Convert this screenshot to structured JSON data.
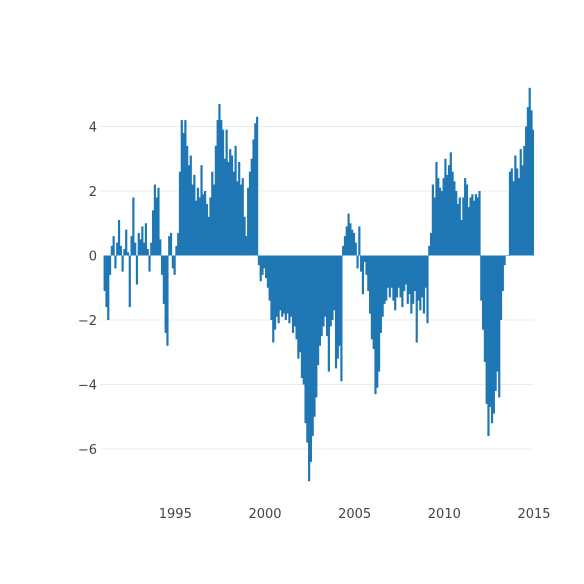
{
  "chart_data": {
    "type": "bar",
    "title": "",
    "xlabel": "",
    "ylabel": "",
    "xlim": [
      1990.8,
      2015.0
    ],
    "ylim": [
      -7.3,
      5.4
    ],
    "x_ticks": [
      {
        "value": 1995,
        "label": "1995"
      },
      {
        "value": 2000,
        "label": "2000"
      },
      {
        "value": 2005,
        "label": "2005"
      },
      {
        "value": 2010,
        "label": "2010"
      },
      {
        "value": 2015,
        "label": "2015"
      }
    ],
    "y_ticks": [
      {
        "value": 4,
        "label": "4"
      },
      {
        "value": 2,
        "label": "2"
      },
      {
        "value": 0,
        "label": "0"
      },
      {
        "value": -2,
        "label": "−2"
      },
      {
        "value": -4,
        "label": "−4"
      },
      {
        "value": -6,
        "label": "−6"
      }
    ],
    "grid": true,
    "series": [
      {
        "color": "#1f77b4",
        "points": [
          [
            1991.0,
            -1.1
          ],
          [
            1991.1,
            -1.6
          ],
          [
            1991.2,
            -2.0
          ],
          [
            1991.3,
            -0.6
          ],
          [
            1991.4,
            0.3
          ],
          [
            1991.5,
            0.6
          ],
          [
            1991.6,
            -0.4
          ],
          [
            1991.7,
            0.4
          ],
          [
            1991.8,
            1.1
          ],
          [
            1991.9,
            0.3
          ],
          [
            1992.0,
            -0.5
          ],
          [
            1992.1,
            0.2
          ],
          [
            1992.2,
            0.8
          ],
          [
            1992.3,
            0.1
          ],
          [
            1992.4,
            -1.6
          ],
          [
            1992.5,
            0.6
          ],
          [
            1992.6,
            1.8
          ],
          [
            1992.7,
            0.4
          ],
          [
            1992.8,
            -0.9
          ],
          [
            1992.9,
            0.7
          ],
          [
            1993.0,
            0.5
          ],
          [
            1993.1,
            0.9
          ],
          [
            1993.2,
            0.4
          ],
          [
            1993.3,
            1.0
          ],
          [
            1993.4,
            0.2
          ],
          [
            1993.5,
            -0.5
          ],
          [
            1993.6,
            0.4
          ],
          [
            1993.7,
            1.4
          ],
          [
            1993.8,
            2.2
          ],
          [
            1993.9,
            1.8
          ],
          [
            1994.0,
            2.1
          ],
          [
            1994.1,
            0.5
          ],
          [
            1994.2,
            -0.6
          ],
          [
            1994.3,
            -1.5
          ],
          [
            1994.4,
            -2.4
          ],
          [
            1994.5,
            -2.8
          ],
          [
            1994.6,
            0.6
          ],
          [
            1994.7,
            0.7
          ],
          [
            1994.8,
            -0.4
          ],
          [
            1994.9,
            -0.6
          ],
          [
            1995.0,
            0.3
          ],
          [
            1995.1,
            0.7
          ],
          [
            1995.2,
            2.6
          ],
          [
            1995.3,
            4.2
          ],
          [
            1995.4,
            3.8
          ],
          [
            1995.5,
            4.2
          ],
          [
            1995.6,
            3.4
          ],
          [
            1995.7,
            2.8
          ],
          [
            1995.8,
            3.1
          ],
          [
            1995.9,
            2.2
          ],
          [
            1996.0,
            2.5
          ],
          [
            1996.1,
            1.7
          ],
          [
            1996.2,
            2.1
          ],
          [
            1996.3,
            1.8
          ],
          [
            1996.4,
            2.8
          ],
          [
            1996.5,
            1.9
          ],
          [
            1996.6,
            2.0
          ],
          [
            1996.7,
            1.6
          ],
          [
            1996.8,
            1.2
          ],
          [
            1996.9,
            1.8
          ],
          [
            1997.0,
            2.6
          ],
          [
            1997.1,
            2.2
          ],
          [
            1997.2,
            3.4
          ],
          [
            1997.3,
            4.2
          ],
          [
            1997.4,
            4.7
          ],
          [
            1997.5,
            4.2
          ],
          [
            1997.6,
            3.9
          ],
          [
            1997.7,
            3.0
          ],
          [
            1997.8,
            3.9
          ],
          [
            1997.9,
            2.9
          ],
          [
            1998.0,
            3.3
          ],
          [
            1998.1,
            3.1
          ],
          [
            1998.2,
            2.6
          ],
          [
            1998.3,
            3.4
          ],
          [
            1998.4,
            2.3
          ],
          [
            1998.5,
            2.9
          ],
          [
            1998.6,
            2.2
          ],
          [
            1998.7,
            2.4
          ],
          [
            1998.8,
            1.2
          ],
          [
            1998.9,
            0.6
          ],
          [
            1999.0,
            2.1
          ],
          [
            1999.1,
            2.6
          ],
          [
            1999.2,
            3.0
          ],
          [
            1999.3,
            3.6
          ],
          [
            1999.4,
            4.1
          ],
          [
            1999.5,
            4.3
          ],
          [
            1999.6,
            -0.3
          ],
          [
            1999.7,
            -0.8
          ],
          [
            1999.8,
            -0.6
          ],
          [
            1999.9,
            -0.4
          ],
          [
            2000.0,
            -0.7
          ],
          [
            2000.1,
            -1.0
          ],
          [
            2000.2,
            -1.4
          ],
          [
            2000.3,
            -2.0
          ],
          [
            2000.4,
            -2.7
          ],
          [
            2000.5,
            -2.3
          ],
          [
            2000.6,
            -1.9
          ],
          [
            2000.7,
            -2.1
          ],
          [
            2000.8,
            -1.7
          ],
          [
            2000.9,
            -1.9
          ],
          [
            2001.0,
            -1.8
          ],
          [
            2001.1,
            -2.0
          ],
          [
            2001.2,
            -1.8
          ],
          [
            2001.3,
            -2.1
          ],
          [
            2001.4,
            -1.9
          ],
          [
            2001.5,
            -2.4
          ],
          [
            2001.6,
            -2.2
          ],
          [
            2001.7,
            -2.6
          ],
          [
            2001.8,
            -3.2
          ],
          [
            2001.9,
            -3.0
          ],
          [
            2002.0,
            -3.8
          ],
          [
            2002.1,
            -4.0
          ],
          [
            2002.2,
            -5.2
          ],
          [
            2002.3,
            -5.8
          ],
          [
            2002.4,
            -7.0
          ],
          [
            2002.5,
            -6.4
          ],
          [
            2002.6,
            -5.6
          ],
          [
            2002.7,
            -5.0
          ],
          [
            2002.8,
            -4.4
          ],
          [
            2002.9,
            -3.4
          ],
          [
            2003.0,
            -2.8
          ],
          [
            2003.1,
            -2.5
          ],
          [
            2003.2,
            -2.2
          ],
          [
            2003.3,
            -1.9
          ],
          [
            2003.4,
            -2.5
          ],
          [
            2003.5,
            -3.6
          ],
          [
            2003.6,
            -2.2
          ],
          [
            2003.7,
            -2.0
          ],
          [
            2003.8,
            -1.7
          ],
          [
            2003.9,
            -3.5
          ],
          [
            2004.0,
            -3.2
          ],
          [
            2004.1,
            -2.8
          ],
          [
            2004.2,
            -3.9
          ],
          [
            2004.3,
            0.3
          ],
          [
            2004.4,
            0.6
          ],
          [
            2004.5,
            0.9
          ],
          [
            2004.6,
            1.3
          ],
          [
            2004.7,
            1.0
          ],
          [
            2004.8,
            0.8
          ],
          [
            2004.9,
            0.7
          ],
          [
            2005.0,
            0.4
          ],
          [
            2005.1,
            -0.4
          ],
          [
            2005.2,
            0.9
          ],
          [
            2005.3,
            -0.5
          ],
          [
            2005.4,
            -1.2
          ],
          [
            2005.5,
            -0.2
          ],
          [
            2005.6,
            -0.6
          ],
          [
            2005.7,
            -1.1
          ],
          [
            2005.8,
            -1.8
          ],
          [
            2005.9,
            -2.6
          ],
          [
            2006.0,
            -2.9
          ],
          [
            2006.1,
            -4.3
          ],
          [
            2006.2,
            -4.1
          ],
          [
            2006.3,
            -3.6
          ],
          [
            2006.4,
            -2.4
          ],
          [
            2006.5,
            -1.9
          ],
          [
            2006.6,
            -1.5
          ],
          [
            2006.7,
            -1.4
          ],
          [
            2006.8,
            -1.0
          ],
          [
            2006.9,
            -1.3
          ],
          [
            2007.0,
            -1.0
          ],
          [
            2007.1,
            -1.4
          ],
          [
            2007.2,
            -1.7
          ],
          [
            2007.3,
            -1.3
          ],
          [
            2007.4,
            -1.0
          ],
          [
            2007.5,
            -1.3
          ],
          [
            2007.6,
            -1.6
          ],
          [
            2007.7,
            -1.1
          ],
          [
            2007.8,
            -0.9
          ],
          [
            2007.9,
            -1.5
          ],
          [
            2008.0,
            -1.2
          ],
          [
            2008.1,
            -1.8
          ],
          [
            2008.2,
            -1.5
          ],
          [
            2008.3,
            -1.1
          ],
          [
            2008.4,
            -2.7
          ],
          [
            2008.5,
            -1.4
          ],
          [
            2008.6,
            -1.7
          ],
          [
            2008.7,
            -1.3
          ],
          [
            2008.8,
            -1.8
          ],
          [
            2008.9,
            -1.0
          ],
          [
            2009.0,
            -2.1
          ],
          [
            2009.1,
            0.3
          ],
          [
            2009.2,
            0.7
          ],
          [
            2009.3,
            2.2
          ],
          [
            2009.4,
            1.8
          ],
          [
            2009.5,
            2.9
          ],
          [
            2009.6,
            2.4
          ],
          [
            2009.7,
            2.1
          ],
          [
            2009.8,
            2.0
          ],
          [
            2009.9,
            2.4
          ],
          [
            2010.0,
            3.0
          ],
          [
            2010.1,
            2.5
          ],
          [
            2010.2,
            2.8
          ],
          [
            2010.3,
            3.2
          ],
          [
            2010.4,
            2.6
          ],
          [
            2010.5,
            2.3
          ],
          [
            2010.6,
            2.0
          ],
          [
            2010.7,
            1.6
          ],
          [
            2010.8,
            1.8
          ],
          [
            2010.9,
            1.1
          ],
          [
            2011.0,
            1.8
          ],
          [
            2011.1,
            2.4
          ],
          [
            2011.2,
            2.2
          ],
          [
            2011.3,
            1.5
          ],
          [
            2011.4,
            1.8
          ],
          [
            2011.5,
            1.9
          ],
          [
            2011.6,
            1.7
          ],
          [
            2011.7,
            1.9
          ],
          [
            2011.8,
            1.8
          ],
          [
            2011.9,
            2.0
          ],
          [
            2012.0,
            -1.4
          ],
          [
            2012.1,
            -2.3
          ],
          [
            2012.2,
            -3.3
          ],
          [
            2012.3,
            -4.6
          ],
          [
            2012.4,
            -5.6
          ],
          [
            2012.5,
            -4.7
          ],
          [
            2012.6,
            -5.2
          ],
          [
            2012.7,
            -4.9
          ],
          [
            2012.8,
            -4.2
          ],
          [
            2012.9,
            -3.6
          ],
          [
            2013.0,
            -4.4
          ],
          [
            2013.1,
            -2.0
          ],
          [
            2013.2,
            -1.1
          ],
          [
            2013.3,
            -0.3
          ],
          [
            2013.4,
            0.0
          ],
          [
            2013.5,
            0.0
          ],
          [
            2013.6,
            2.6
          ],
          [
            2013.7,
            2.7
          ],
          [
            2013.8,
            2.3
          ],
          [
            2013.9,
            3.1
          ],
          [
            2014.0,
            2.7
          ],
          [
            2014.1,
            2.4
          ],
          [
            2014.2,
            3.3
          ],
          [
            2014.3,
            2.8
          ],
          [
            2014.4,
            3.4
          ],
          [
            2014.5,
            4.0
          ],
          [
            2014.6,
            4.6
          ],
          [
            2014.7,
            5.2
          ],
          [
            2014.8,
            4.5
          ],
          [
            2014.9,
            3.9
          ]
        ]
      }
    ]
  }
}
